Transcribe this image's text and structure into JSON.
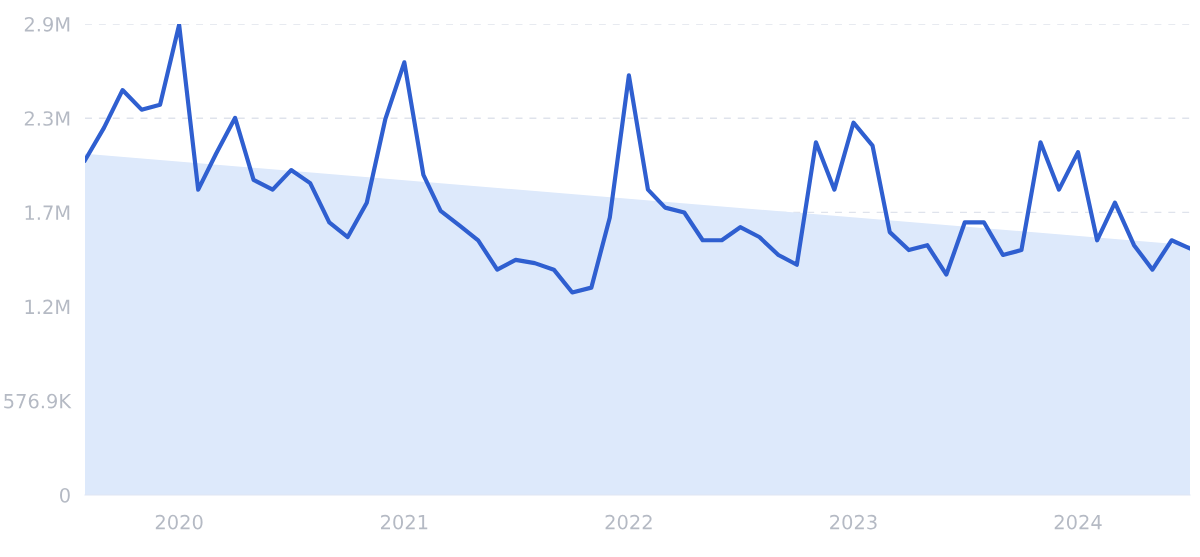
{
  "chart_data": {
    "type": "line",
    "x": [
      "2019-08",
      "2019-09",
      "2019-10",
      "2019-11",
      "2019-12",
      "2020-01",
      "2020-02",
      "2020-03",
      "2020-04",
      "2020-05",
      "2020-06",
      "2020-07",
      "2020-08",
      "2020-09",
      "2020-10",
      "2020-11",
      "2020-12",
      "2021-01",
      "2021-02",
      "2021-03",
      "2021-04",
      "2021-05",
      "2021-06",
      "2021-07",
      "2021-08",
      "2021-09",
      "2021-10",
      "2021-11",
      "2021-12",
      "2022-01",
      "2022-02",
      "2022-03",
      "2022-04",
      "2022-05",
      "2022-06",
      "2022-07",
      "2022-08",
      "2022-09",
      "2022-10",
      "2022-11",
      "2022-12",
      "2023-01",
      "2023-02",
      "2023-03",
      "2023-04",
      "2023-05",
      "2023-06",
      "2023-07",
      "2023-08",
      "2023-09",
      "2023-10",
      "2023-11",
      "2023-12",
      "2024-01",
      "2024-02",
      "2024-03",
      "2024-04",
      "2024-05",
      "2024-06",
      "2024-07"
    ],
    "series": [
      {
        "type": "area",
        "x": [
          "2019-08",
          "2024-07"
        ],
        "values": [
          2090000,
          1530000
        ],
        "color": "#dde9fb"
      },
      {
        "color": "#2f5fd0",
        "values": [
          2050000,
          2250000,
          2480000,
          2360000,
          2390000,
          2880000,
          1870000,
          2090000,
          2310000,
          1930000,
          1870000,
          1990000,
          1910000,
          1670000,
          1580000,
          1790000,
          2300000,
          2650000,
          1960000,
          1740000,
          1650000,
          1560000,
          1380000,
          1440000,
          1420000,
          1380000,
          1240000,
          1270000,
          1700000,
          2570000,
          1870000,
          1760000,
          1730000,
          1560000,
          1560000,
          1640000,
          1580000,
          1470000,
          1410000,
          2160000,
          1870000,
          2280000,
          2140000,
          1610000,
          1500000,
          1530000,
          1350000,
          1670000,
          1670000,
          1470000,
          1500000,
          2160000,
          1870000,
          2100000,
          1560000,
          1790000,
          1530000,
          1380000,
          1560000,
          1510000
        ]
      }
    ],
    "xlim": [
      "2019-08",
      "2024-07"
    ],
    "xticks": [
      {
        "value": "2020-01",
        "label": "2020"
      },
      {
        "value": "2021-01",
        "label": "2021"
      },
      {
        "value": "2022-01",
        "label": "2022"
      },
      {
        "value": "2023-01",
        "label": "2023"
      },
      {
        "value": "2024-01",
        "label": "2024"
      }
    ],
    "ylim": [
      0,
      2884500
    ],
    "yticks": [
      0,
      {
        "value": 576900,
        "label": "576.9K"
      },
      {
        "value": 1153800,
        "label": "1.2M"
      },
      {
        "value": 1730700,
        "label": "1.7M"
      },
      {
        "value": 2307600,
        "label": "2.3M"
      },
      {
        "value": 2884500,
        "label": "2.9M"
      }
    ],
    "grid": "y",
    "marker": "none",
    "line_style": "solid"
  }
}
